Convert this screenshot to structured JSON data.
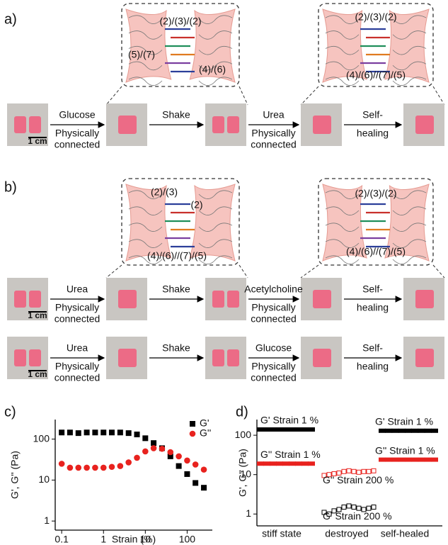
{
  "panel_labels": [
    "a)",
    "b)",
    "c)",
    "d)"
  ],
  "a": {
    "diagram_left": [
      "(2)/(3)/(2)",
      "(5)/(7)",
      "(4)/(6)"
    ],
    "diagram_right": [
      "(2)/(3)/(2)",
      "(4)/(6)//(7)/(5)"
    ],
    "rows": [
      {
        "scale": "1 cm",
        "steps": [
          {
            "top": [
              "Glucose"
            ],
            "bottom": [
              "Physically",
              "connected"
            ]
          },
          {
            "top": [
              "Shake"
            ],
            "bottom": []
          },
          {
            "top": [
              "Urea"
            ],
            "bottom": [
              "Physically",
              "connected"
            ]
          },
          {
            "top": [
              "Self-"
            ],
            "bottom": [
              "healing"
            ]
          }
        ]
      }
    ]
  },
  "b": {
    "diagram_left": [
      "(2)/(3)",
      "(2)",
      "(4)/(6)//(7)/(5)"
    ],
    "diagram_right": [
      "(2)/(3)/(2)",
      "(4)/(6)//(7)/(5)"
    ],
    "rows": [
      {
        "scale": "1 cm",
        "steps": [
          {
            "top": [
              "Urea"
            ],
            "bottom": [
              "Physically",
              "connected"
            ]
          },
          {
            "top": [
              "Shake"
            ],
            "bottom": []
          },
          {
            "top": [
              "Acetylcholine"
            ],
            "bottom": [
              "Physically",
              "connected"
            ]
          },
          {
            "top": [
              "Self-"
            ],
            "bottom": [
              "healing"
            ]
          }
        ]
      },
      {
        "scale": "1 cm",
        "steps": [
          {
            "top": [
              "Urea"
            ],
            "bottom": [
              "Physically",
              "connected"
            ]
          },
          {
            "top": [
              "Shake"
            ],
            "bottom": []
          },
          {
            "top": [
              "Glucose"
            ],
            "bottom": [
              "Physically",
              "connected"
            ]
          },
          {
            "top": [
              "Self-"
            ],
            "bottom": [
              "healing"
            ]
          }
        ]
      }
    ]
  },
  "chart_data": [
    {
      "type": "scatter",
      "x_label": "Strain (%)",
      "y_label": "G', G'' (Pa)",
      "x_log": true,
      "y_log": true,
      "xlim": [
        0.07,
        400
      ],
      "ylim": [
        0.6,
        300
      ],
      "xticks": [
        0.1,
        1,
        10,
        100
      ],
      "yticks": [
        1,
        10,
        100
      ],
      "x": [
        0.1,
        0.158,
        0.251,
        0.398,
        0.631,
        1,
        1.58,
        2.51,
        3.98,
        6.31,
        10,
        15.8,
        25.1,
        39.8,
        63.1,
        100,
        158,
        251
      ],
      "legend": "top-right",
      "series": [
        {
          "name": "G'",
          "color": "#000000",
          "marker": "square",
          "values": [
            145,
            145,
            140,
            145,
            145,
            145,
            145,
            145,
            140,
            130,
            105,
            80,
            60,
            38,
            22,
            14,
            8.5,
            6.5
          ]
        },
        {
          "name": "G''",
          "color": "#e8221e",
          "marker": "circle",
          "values": [
            25,
            20,
            20,
            20,
            20,
            20,
            21,
            22,
            27,
            35,
            50,
            60,
            58,
            48,
            38,
            30,
            24,
            18
          ]
        }
      ]
    },
    {
      "type": "line",
      "y_label": "G', G'' (Pa)",
      "y_log": true,
      "ylim": [
        0.5,
        250
      ],
      "yticks": [
        1,
        10,
        100
      ],
      "groups": [
        {
          "category": "stiff state",
          "series": [
            {
              "name": "G' Strain 1 %",
              "color": "#000000",
              "marker": "filled",
              "values": [
                140,
                140,
                140,
                140,
                140,
                140,
                140,
                140,
                140
              ]
            },
            {
              "name": "G'' Strain 1 %",
              "color": "#e8221e",
              "marker": "filled",
              "values": [
                19,
                19,
                19,
                19,
                19,
                19,
                19,
                19,
                19
              ]
            }
          ]
        },
        {
          "category": "destroyed",
          "series": [
            {
              "name": "G'' Strain 200 %",
              "color": "#e8221e",
              "marker": "hollow",
              "values": [
                9.5,
                10,
                10.5,
                11,
                12,
                12.5,
                12,
                11.5,
                12,
                12,
                12.5
              ]
            },
            {
              "name": "G' Strain 200 %",
              "color": "#000000",
              "marker": "hollow",
              "values": [
                1.1,
                1.0,
                1.2,
                1.3,
                1.5,
                1.6,
                1.5,
                1.4,
                1.3,
                1.4,
                1.5
              ]
            }
          ]
        },
        {
          "category": "self-healed",
          "series": [
            {
              "name": "G' Strain 1 %",
              "color": "#000000",
              "marker": "filled",
              "values": [
                130,
                130,
                130,
                130,
                130,
                130,
                130,
                130,
                130
              ]
            },
            {
              "name": "G'' Strain 1 %",
              "color": "#e8221e",
              "marker": "filled",
              "values": [
                24,
                24,
                24,
                24,
                24,
                24,
                24,
                24,
                24
              ]
            }
          ]
        }
      ]
    }
  ]
}
